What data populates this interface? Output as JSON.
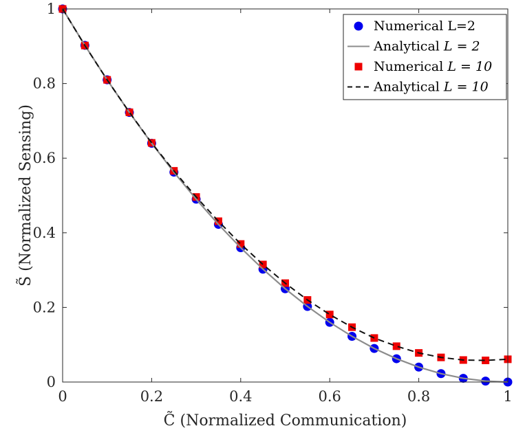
{
  "chart_data": {
    "type": "line",
    "title": "",
    "xlabel": "C̃ (Normalized Communication)",
    "ylabel": "S̃ (Normalized Sensing)",
    "xlim": [
      0,
      1
    ],
    "ylim": [
      0,
      1
    ],
    "xticks": [
      0,
      0.2,
      0.4,
      0.6,
      0.8,
      1
    ],
    "yticks": [
      0,
      0.2,
      0.4,
      0.6,
      0.8,
      1
    ],
    "xtick_labels": [
      "0",
      "0.2",
      "0.4",
      "0.6",
      "0.8",
      "1"
    ],
    "ytick_labels": [
      "0",
      "0.2",
      "0.4",
      "0.6",
      "0.8",
      "1"
    ],
    "grid": false,
    "legend_position": "top-right",
    "series": [
      {
        "name": "Numerical L=2",
        "kind": "scatter",
        "marker": "circle",
        "color": "#0000ee",
        "x": [
          0,
          0.05,
          0.1,
          0.15,
          0.2,
          0.25,
          0.3,
          0.35,
          0.4,
          0.45,
          0.5,
          0.55,
          0.6,
          0.65,
          0.7,
          0.75,
          0.8,
          0.85,
          0.9,
          0.95,
          1.0
        ],
        "y": [
          1.0,
          0.9025,
          0.81,
          0.7225,
          0.64,
          0.5625,
          0.49,
          0.4225,
          0.36,
          0.3025,
          0.25,
          0.2025,
          0.16,
          0.1225,
          0.09,
          0.0625,
          0.04,
          0.0225,
          0.01,
          0.0025,
          0.0
        ]
      },
      {
        "name": "Analytical L = 2",
        "kind": "line",
        "dash": "solid",
        "color": "#8c8c8c",
        "x": [
          0,
          0.05,
          0.1,
          0.15,
          0.2,
          0.25,
          0.3,
          0.35,
          0.4,
          0.45,
          0.5,
          0.55,
          0.6,
          0.65,
          0.7,
          0.75,
          0.8,
          0.85,
          0.9,
          0.95,
          1.0
        ],
        "y": [
          1.0,
          0.9025,
          0.81,
          0.7225,
          0.64,
          0.5625,
          0.49,
          0.4225,
          0.36,
          0.3025,
          0.25,
          0.2025,
          0.16,
          0.1225,
          0.09,
          0.0625,
          0.04,
          0.0225,
          0.01,
          0.0025,
          0.0
        ]
      },
      {
        "name": "Numerical L = 10",
        "kind": "scatter",
        "marker": "square",
        "color": "#ee0000",
        "x": [
          0,
          0.05,
          0.1,
          0.15,
          0.2,
          0.25,
          0.3,
          0.35,
          0.4,
          0.45,
          0.5,
          0.55,
          0.6,
          0.65,
          0.7,
          0.75,
          0.8,
          0.85,
          0.9,
          0.95,
          1.0
        ],
        "y": [
          1.0,
          0.902,
          0.81,
          0.723,
          0.641,
          0.566,
          0.496,
          0.431,
          0.37,
          0.315,
          0.265,
          0.22,
          0.181,
          0.147,
          0.118,
          0.096,
          0.078,
          0.066,
          0.059,
          0.058,
          0.061
        ]
      },
      {
        "name": "Analytical L = 10",
        "kind": "line",
        "dash": "dashed",
        "color": "#111111",
        "x": [
          0,
          0.05,
          0.1,
          0.15,
          0.2,
          0.25,
          0.3,
          0.35,
          0.4,
          0.45,
          0.5,
          0.55,
          0.6,
          0.65,
          0.7,
          0.75,
          0.8,
          0.85,
          0.9,
          0.95,
          1.0
        ],
        "y": [
          1.0,
          0.902,
          0.81,
          0.723,
          0.641,
          0.566,
          0.496,
          0.431,
          0.37,
          0.315,
          0.265,
          0.22,
          0.181,
          0.147,
          0.118,
          0.096,
          0.078,
          0.066,
          0.059,
          0.058,
          0.061
        ]
      }
    ],
    "legend": [
      {
        "label": "Numerical L=2",
        "name_text": "Numerical L=2",
        "math": ""
      },
      {
        "label": "Analytical L = 2",
        "name_text": "Analytical ",
        "math": "L = 2"
      },
      {
        "label": "Numerical L = 10",
        "name_text": "Numerical ",
        "math": "L = 10"
      },
      {
        "label": "Analytical L = 10",
        "name_text": "Analytical ",
        "math": "L = 10"
      }
    ]
  }
}
